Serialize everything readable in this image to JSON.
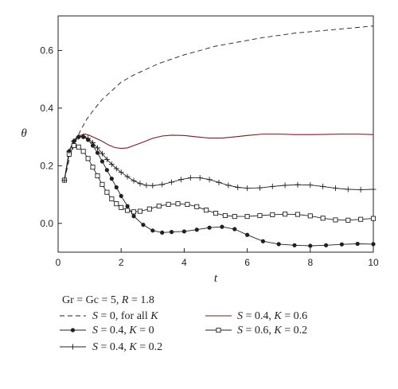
{
  "chart_data": {
    "type": "line",
    "title": "",
    "xlabel": "t",
    "ylabel": "θ",
    "xlim": [
      0,
      10
    ],
    "ylim": [
      -0.1,
      0.72
    ],
    "xticks": [
      0,
      2,
      4,
      6,
      8,
      10
    ],
    "yticks": [
      0.0,
      0.2,
      0.4,
      0.6
    ],
    "ytick_labels": [
      "0.0",
      "0.2",
      "0.4",
      "0.6"
    ],
    "grid": false,
    "legend_header": {
      "parts": [
        {
          "text": "Gr = Gc = 5, ",
          "italic": false
        },
        {
          "text": "R",
          "italic": true
        },
        {
          "text": " = 1.8",
          "italic": false
        }
      ]
    },
    "series": [
      {
        "name": "S = 0, for all K",
        "legend_parts": [
          {
            "text": "S",
            "italic": true
          },
          {
            "text": " = 0, for all ",
            "italic": false
          },
          {
            "text": "K",
            "italic": true
          }
        ],
        "style": "dashed",
        "marker": "none",
        "x": [
          0.2,
          0.35,
          0.5,
          0.7,
          0.9,
          1.1,
          1.4,
          1.7,
          2.0,
          2.4,
          2.8,
          3.2,
          3.6,
          4.0,
          4.5,
          5.0,
          5.5,
          6.0,
          6.5,
          7.0,
          7.5,
          8.0,
          8.5,
          9.0,
          9.5,
          10.0
        ],
        "y": [
          0.15,
          0.22,
          0.27,
          0.32,
          0.36,
          0.39,
          0.43,
          0.46,
          0.49,
          0.515,
          0.535,
          0.555,
          0.57,
          0.585,
          0.6,
          0.615,
          0.625,
          0.635,
          0.645,
          0.652,
          0.66,
          0.665,
          0.67,
          0.675,
          0.68,
          0.685
        ]
      },
      {
        "name": "S = 0.4, K = 0.6",
        "legend_parts": [
          {
            "text": "S",
            "italic": true
          },
          {
            "text": " = 0.4, ",
            "italic": false
          },
          {
            "text": "K",
            "italic": true
          },
          {
            "text": " = 0.6",
            "italic": false
          }
        ],
        "style": "solid",
        "marker": "none",
        "x": [
          0.2,
          0.35,
          0.5,
          0.7,
          0.85,
          1.0,
          1.2,
          1.4,
          1.6,
          1.8,
          2.0,
          2.2,
          2.4,
          2.7,
          3.0,
          3.3,
          3.6,
          4.0,
          4.4,
          4.8,
          5.2,
          5.6,
          6.0,
          6.5,
          7.0,
          7.5,
          8.0,
          8.5,
          9.0,
          9.5,
          10.0
        ],
        "y": [
          0.15,
          0.25,
          0.29,
          0.305,
          0.31,
          0.305,
          0.295,
          0.285,
          0.272,
          0.263,
          0.26,
          0.262,
          0.27,
          0.282,
          0.295,
          0.303,
          0.306,
          0.305,
          0.3,
          0.296,
          0.296,
          0.3,
          0.305,
          0.31,
          0.31,
          0.308,
          0.308,
          0.309,
          0.31,
          0.31,
          0.308
        ]
      },
      {
        "name": "S = 0.4, K = 0",
        "legend_parts": [
          {
            "text": "S",
            "italic": true
          },
          {
            "text": " = 0.4, ",
            "italic": false
          },
          {
            "text": "K",
            "italic": true
          },
          {
            "text": " = 0",
            "italic": false
          }
        ],
        "style": "solid",
        "marker": "filled-circle",
        "x": [
          0.2,
          0.35,
          0.5,
          0.65,
          0.8,
          0.95,
          1.1,
          1.25,
          1.4,
          1.55,
          1.7,
          1.85,
          2.0,
          2.2,
          2.4,
          2.7,
          3.0,
          3.3,
          3.6,
          4.0,
          4.4,
          4.8,
          5.2,
          5.6,
          6.0,
          6.5,
          7.0,
          7.5,
          8.0,
          8.5,
          9.0,
          9.5,
          10.0
        ],
        "y": [
          0.15,
          0.25,
          0.285,
          0.3,
          0.3,
          0.29,
          0.27,
          0.245,
          0.215,
          0.185,
          0.155,
          0.125,
          0.095,
          0.06,
          0.025,
          -0.005,
          -0.025,
          -0.032,
          -0.03,
          -0.028,
          -0.022,
          -0.015,
          -0.012,
          -0.02,
          -0.04,
          -0.062,
          -0.072,
          -0.076,
          -0.078,
          -0.076,
          -0.073,
          -0.071,
          -0.072
        ]
      },
      {
        "name": "S = 0.6, K = 0.2",
        "legend_parts": [
          {
            "text": "S",
            "italic": true
          },
          {
            "text": " = 0.6, ",
            "italic": false
          },
          {
            "text": "K",
            "italic": true
          },
          {
            "text": " = 0.2",
            "italic": false
          }
        ],
        "style": "solid",
        "marker": "open-square",
        "x": [
          0.2,
          0.35,
          0.5,
          0.65,
          0.8,
          0.95,
          1.1,
          1.25,
          1.4,
          1.55,
          1.7,
          1.85,
          2.0,
          2.2,
          2.4,
          2.6,
          2.9,
          3.2,
          3.5,
          3.8,
          4.1,
          4.4,
          4.7,
          5.0,
          5.3,
          5.6,
          6.0,
          6.4,
          6.8,
          7.2,
          7.6,
          8.0,
          8.4,
          8.8,
          9.2,
          9.6,
          10.0
        ],
        "y": [
          0.15,
          0.24,
          0.27,
          0.265,
          0.25,
          0.225,
          0.195,
          0.165,
          0.135,
          0.108,
          0.085,
          0.068,
          0.055,
          0.045,
          0.04,
          0.042,
          0.05,
          0.06,
          0.066,
          0.068,
          0.066,
          0.058,
          0.046,
          0.035,
          0.027,
          0.024,
          0.024,
          0.027,
          0.03,
          0.032,
          0.031,
          0.026,
          0.018,
          0.012,
          0.011,
          0.014,
          0.017
        ]
      },
      {
        "name": "S = 0.4, K = 0.2",
        "legend_parts": [
          {
            "text": "S",
            "italic": true
          },
          {
            "text": " = 0.4, ",
            "italic": false
          },
          {
            "text": "K",
            "italic": true
          },
          {
            "text": " = 0.2",
            "italic": false
          }
        ],
        "style": "solid",
        "marker": "plus",
        "x": [
          0.2,
          0.35,
          0.5,
          0.65,
          0.8,
          0.95,
          1.1,
          1.25,
          1.4,
          1.55,
          1.7,
          1.85,
          2.0,
          2.2,
          2.4,
          2.6,
          2.8,
          3.0,
          3.3,
          3.6,
          3.9,
          4.2,
          4.5,
          4.8,
          5.1,
          5.4,
          5.7,
          6.0,
          6.4,
          6.8,
          7.2,
          7.6,
          8.0,
          8.4,
          8.8,
          9.2,
          9.6,
          10.0
        ],
        "y": [
          0.15,
          0.25,
          0.285,
          0.3,
          0.302,
          0.295,
          0.28,
          0.262,
          0.242,
          0.222,
          0.205,
          0.19,
          0.177,
          0.162,
          0.148,
          0.138,
          0.132,
          0.131,
          0.135,
          0.143,
          0.152,
          0.158,
          0.158,
          0.152,
          0.142,
          0.132,
          0.125,
          0.122,
          0.123,
          0.128,
          0.132,
          0.134,
          0.133,
          0.128,
          0.122,
          0.118,
          0.117,
          0.118
        ]
      }
    ],
    "legend_placement": "bottom",
    "colors": {
      "dark": "#231f20",
      "brown": "#6b1f27"
    }
  }
}
